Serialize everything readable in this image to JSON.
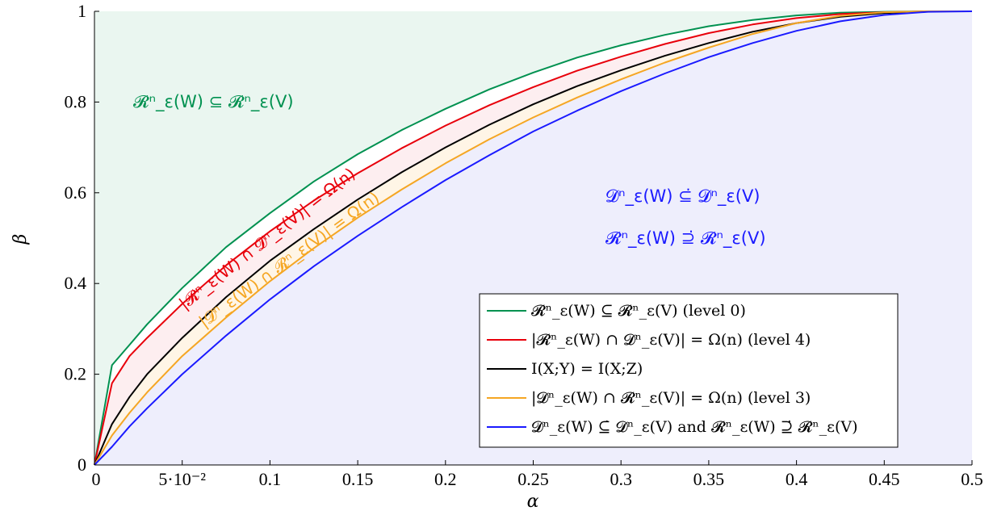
{
  "chart_data": {
    "type": "line",
    "xlabel": "α",
    "ylabel": "β",
    "xlim": [
      0,
      0.5
    ],
    "ylim": [
      0,
      1
    ],
    "x_ticks": [
      {
        "value": 0,
        "label": "0"
      },
      {
        "value": 0.05,
        "label": "5·10⁻²"
      },
      {
        "value": 0.1,
        "label": "0.1"
      },
      {
        "value": 0.15,
        "label": "0.15"
      },
      {
        "value": 0.2,
        "label": "0.2"
      },
      {
        "value": 0.25,
        "label": "0.25"
      },
      {
        "value": 0.3,
        "label": "0.3"
      },
      {
        "value": 0.35,
        "label": "0.35"
      },
      {
        "value": 0.4,
        "label": "0.4"
      },
      {
        "value": 0.45,
        "label": "0.45"
      },
      {
        "value": 0.5,
        "label": "0.5"
      }
    ],
    "y_ticks": [
      {
        "value": 0,
        "label": "0"
      },
      {
        "value": 0.2,
        "label": "0.2"
      },
      {
        "value": 0.4,
        "label": "0.4"
      },
      {
        "value": 0.6,
        "label": "0.6"
      },
      {
        "value": 0.8,
        "label": "0.8"
      },
      {
        "value": 1,
        "label": "1"
      }
    ],
    "x": [
      0,
      0.01,
      0.02,
      0.03,
      0.05,
      0.075,
      0.1,
      0.125,
      0.15,
      0.175,
      0.2,
      0.225,
      0.25,
      0.275,
      0.3,
      0.325,
      0.35,
      0.375,
      0.4,
      0.425,
      0.45,
      0.475,
      0.5
    ],
    "series": [
      {
        "name": "𝓡ⁿ_ε(W) ⊆ 𝓡ⁿ_ε(V) (level 0)",
        "color": "#009150",
        "values": [
          0,
          0.22,
          0.265,
          0.31,
          0.39,
          0.48,
          0.555,
          0.625,
          0.685,
          0.738,
          0.785,
          0.828,
          0.865,
          0.898,
          0.925,
          0.948,
          0.967,
          0.981,
          0.991,
          0.997,
          0.999,
          1.0,
          1.0
        ]
      },
      {
        "name": "|𝓡ⁿ_ε(W) ∩ 𝓓ⁿ_ε(V)| = Ω(n) (level 4)",
        "color": "#e8000b",
        "values": [
          0,
          0.18,
          0.24,
          0.28,
          0.355,
          0.44,
          0.515,
          0.583,
          0.643,
          0.698,
          0.748,
          0.793,
          0.833,
          0.869,
          0.9,
          0.928,
          0.952,
          0.971,
          0.985,
          0.994,
          0.998,
          1.0,
          1.0
        ]
      },
      {
        "name": "I(X;Y) = I(X;Z)",
        "color": "#000000",
        "values": [
          0,
          0.09,
          0.15,
          0.2,
          0.28,
          0.37,
          0.45,
          0.52,
          0.585,
          0.645,
          0.7,
          0.75,
          0.795,
          0.835,
          0.87,
          0.902,
          0.93,
          0.955,
          0.974,
          0.988,
          0.996,
          1.0,
          1.0
        ]
      },
      {
        "name": "|𝓓ⁿ_ε(W) ∩ 𝓡ⁿ_ε(V)| = Ω(n) (level 3)",
        "color": "#f5a623",
        "values": [
          0,
          0.065,
          0.115,
          0.16,
          0.24,
          0.325,
          0.405,
          0.478,
          0.545,
          0.607,
          0.665,
          0.718,
          0.766,
          0.81,
          0.85,
          0.887,
          0.92,
          0.95,
          0.974,
          0.99,
          0.998,
          1.0,
          1.0
        ]
      },
      {
        "name": "𝓓ⁿ_ε(W) ⊆̇ 𝓓ⁿ_ε(V) and 𝓡ⁿ_ε(W) ⊇̇ 𝓡ⁿ_ε(V)",
        "color": "#1a1aff",
        "values": [
          0,
          0.04,
          0.085,
          0.125,
          0.2,
          0.285,
          0.365,
          0.438,
          0.505,
          0.568,
          0.628,
          0.683,
          0.735,
          0.781,
          0.824,
          0.863,
          0.899,
          0.93,
          0.957,
          0.978,
          0.992,
          0.999,
          1.0
        ]
      }
    ],
    "annotations": {
      "top_left_region": "𝓡ⁿ_ε(W) ⊆ 𝓡ⁿ_ε(V)",
      "bottom_right_line1": "𝓓ⁿ_ε(W) ⊆̇ 𝓓ⁿ_ε(V)",
      "bottom_right_line2": "𝓡ⁿ_ε(W) ⊇̇ 𝓡ⁿ_ε(V)",
      "red_band": "|𝓡ⁿ_ε(W) ∩ 𝓓ⁿ_ε(V)| = Ω(n)",
      "orange_band": "|𝓓ⁿ_ε(W) ∩ 𝓡ⁿ_ε(V)| = Ω(n)"
    },
    "region_colors": {
      "above_green": "#eaf6f0",
      "green_to_red": "#ffffff",
      "red_to_black": "#fdeef0",
      "black_to_orange": "#fff5e6",
      "below_orange": "#eeeefc"
    },
    "legend_position": "bottom-right",
    "grid": false
  }
}
